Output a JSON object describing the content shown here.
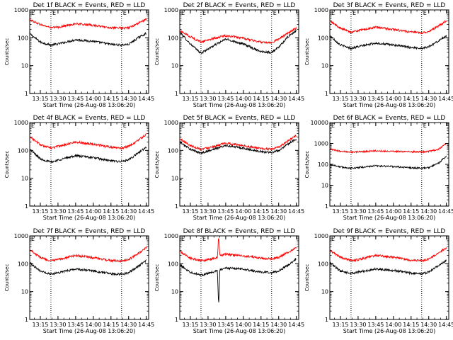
{
  "figure": {
    "x_tick_labels": [
      "13:15",
      "13:30",
      "13:45",
      "14:00",
      "14:15",
      "14:30",
      "14:45"
    ],
    "y_tick_labels": [
      "1",
      "10",
      "100",
      "1000"
    ],
    "y_tick_labels_6f": [
      "1",
      "10",
      "100",
      "1000",
      "10000"
    ],
    "marker_letters": [
      "E",
      "E"
    ],
    "colors": {
      "events": "#000000",
      "lld": "#ff0000",
      "axes": "#000000"
    }
  },
  "chart_data": [
    {
      "type": "line",
      "title": "Det 1f BLACK = Events, RED = LLD",
      "xlabel": "Start Time (26-Aug-08 13:06:20)",
      "ylabel": "Counts/sec",
      "xlim": [
        "13:06",
        "14:47"
      ],
      "ylim": [
        1,
        1000
      ],
      "yscale": "log",
      "x": [
        "13:06",
        "13:15",
        "13:24",
        "13:30",
        "13:45",
        "14:00",
        "14:15",
        "14:24",
        "14:30",
        "14:38",
        "14:45"
      ],
      "series": [
        {
          "name": "Events",
          "values": [
            140,
            70,
            55,
            60,
            85,
            75,
            58,
            55,
            58,
            100,
            145
          ]
        },
        {
          "name": "LLD",
          "values": [
            450,
            300,
            230,
            240,
            320,
            280,
            230,
            220,
            230,
            330,
            460
          ]
        }
      ],
      "markers": [
        {
          "x": "13:24",
          "label": "E"
        },
        {
          "x": "14:24",
          "label": "E"
        }
      ]
    },
    {
      "type": "line",
      "title": "Det 2f BLACK = Events, RED = LLD",
      "xlabel": "Start Time (26-Aug-08 13:06:20)",
      "ylabel": "Counts/sec",
      "xlim": [
        "13:06",
        "14:47"
      ],
      "ylim": [
        1,
        1000
      ],
      "yscale": "log",
      "x": [
        "13:06",
        "13:15",
        "13:24",
        "13:30",
        "13:45",
        "14:00",
        "14:15",
        "14:24",
        "14:30",
        "14:38",
        "14:45"
      ],
      "series": [
        {
          "name": "Events",
          "values": [
            160,
            60,
            28,
            40,
            90,
            60,
            32,
            30,
            45,
            110,
            180
          ]
        },
        {
          "name": "LLD",
          "values": [
            180,
            110,
            70,
            85,
            120,
            95,
            70,
            68,
            90,
            150,
            220
          ]
        }
      ],
      "markers": [
        {
          "x": "13:24",
          "label": "E"
        },
        {
          "x": "14:24",
          "label": "E"
        }
      ]
    },
    {
      "type": "line",
      "title": "Det 3f BLACK = Events, RED = LLD",
      "xlabel": "Start Time (26-Aug-08 13:06:20)",
      "ylabel": "Counts/sec",
      "xlim": [
        "13:06",
        "14:47"
      ],
      "ylim": [
        1,
        1000
      ],
      "yscale": "log",
      "x": [
        "13:06",
        "13:15",
        "13:24",
        "13:30",
        "13:45",
        "14:00",
        "14:15",
        "14:24",
        "14:30",
        "14:38",
        "14:45"
      ],
      "series": [
        {
          "name": "Events",
          "values": [
            120,
            55,
            42,
            48,
            65,
            55,
            45,
            42,
            48,
            75,
            120
          ]
        },
        {
          "name": "LLD",
          "values": [
            400,
            220,
            160,
            180,
            240,
            200,
            160,
            150,
            170,
            260,
            400
          ]
        }
      ],
      "markers": [
        {
          "x": "13:24",
          "label": "E"
        },
        {
          "x": "14:24",
          "label": "E"
        }
      ]
    },
    {
      "type": "line",
      "title": "Det 4f BLACK = Events, RED = LLD",
      "xlabel": "Start Time (26-Aug-08 13:06:20)",
      "ylabel": "Counts/sec",
      "xlim": [
        "13:06",
        "14:47"
      ],
      "ylim": [
        1,
        1000
      ],
      "yscale": "log",
      "x": [
        "13:06",
        "13:15",
        "13:24",
        "13:30",
        "13:45",
        "14:00",
        "14:15",
        "14:24",
        "14:30",
        "14:38",
        "14:45"
      ],
      "series": [
        {
          "name": "Events",
          "values": [
            110,
            50,
            38,
            45,
            65,
            55,
            42,
            40,
            45,
            80,
            130
          ]
        },
        {
          "name": "LLD",
          "values": [
            320,
            160,
            120,
            140,
            200,
            170,
            130,
            120,
            140,
            230,
            380
          ]
        }
      ],
      "markers": [
        {
          "x": "13:24",
          "label": "E"
        },
        {
          "x": "14:24",
          "label": "E"
        }
      ]
    },
    {
      "type": "line",
      "title": "Det 5f BLACK = Events, RED = LLD",
      "xlabel": "Start Time (26-Aug-08 13:06:20)",
      "ylabel": "Counts/sec",
      "xlim": [
        "13:06",
        "14:47"
      ],
      "ylim": [
        1,
        1000
      ],
      "yscale": "log",
      "x": [
        "13:06",
        "13:15",
        "13:24",
        "13:30",
        "13:45",
        "14:00",
        "14:15",
        "14:24",
        "14:30",
        "14:38",
        "14:45"
      ],
      "series": [
        {
          "name": "Events",
          "values": [
            200,
            110,
            80,
            95,
            150,
            120,
            90,
            85,
            100,
            170,
            260
          ]
        },
        {
          "name": "LLD",
          "values": [
            260,
            150,
            110,
            125,
            180,
            150,
            115,
            110,
            130,
            220,
            340
          ]
        }
      ],
      "markers": [
        {
          "x": "13:24",
          "label": "E"
        },
        {
          "x": "14:24",
          "label": "E"
        }
      ]
    },
    {
      "type": "line",
      "title": "Det 6f BLACK = Events, RED = LLD",
      "xlabel": "Start Time (26-Aug-08 13:06:20)",
      "ylabel": "Counts/sec",
      "xlim": [
        "13:06",
        "14:47"
      ],
      "ylim": [
        1,
        10000
      ],
      "yscale": "log",
      "x": [
        "13:06",
        "13:15",
        "13:24",
        "13:30",
        "13:45",
        "14:00",
        "14:15",
        "14:24",
        "14:30",
        "14:38",
        "14:45"
      ],
      "series": [
        {
          "name": "Events",
          "values": [
            100,
            75,
            65,
            70,
            85,
            78,
            68,
            65,
            70,
            110,
            250
          ]
        },
        {
          "name": "LLD",
          "values": [
            520,
            430,
            390,
            400,
            440,
            420,
            400,
            390,
            420,
            520,
            1000
          ]
        }
      ],
      "markers": [
        {
          "x": "13:24",
          "label": "E"
        },
        {
          "x": "14:24",
          "label": "E"
        }
      ]
    },
    {
      "type": "line",
      "title": "Det 7f BLACK = Events, RED = LLD",
      "xlabel": "Start Time (26-Aug-08 13:06:20)",
      "ylabel": "Counts/sec",
      "xlim": [
        "13:06",
        "14:47"
      ],
      "ylim": [
        1,
        1000
      ],
      "yscale": "log",
      "x": [
        "13:06",
        "13:15",
        "13:24",
        "13:30",
        "13:45",
        "14:00",
        "14:15",
        "14:24",
        "14:30",
        "14:38",
        "14:45"
      ],
      "series": [
        {
          "name": "Events",
          "values": [
            110,
            55,
            42,
            48,
            65,
            55,
            44,
            42,
            48,
            80,
            130
          ]
        },
        {
          "name": "LLD",
          "values": [
            330,
            170,
            125,
            140,
            200,
            165,
            130,
            125,
            140,
            230,
            390
          ]
        }
      ],
      "markers": [
        {
          "x": "13:24",
          "label": "E"
        },
        {
          "x": "14:24",
          "label": "E"
        }
      ]
    },
    {
      "type": "line",
      "title": "Det 8f BLACK = Events, RED = LLD",
      "xlabel": "Start Time (26-Aug-08 13:06:20)",
      "ylabel": "Counts/sec",
      "xlim": [
        "13:06",
        "14:47"
      ],
      "ylim": [
        1,
        1000
      ],
      "yscale": "log",
      "x": [
        "13:06",
        "13:15",
        "13:24",
        "13:30",
        "13:38",
        "13:39",
        "13:40",
        "13:45",
        "14:00",
        "14:15",
        "14:24",
        "14:30",
        "14:38",
        "14:45"
      ],
      "series": [
        {
          "name": "Events",
          "values": [
            90,
            50,
            40,
            45,
            55,
            3,
            60,
            70,
            65,
            50,
            48,
            55,
            90,
            150
          ]
        },
        {
          "name": "LLD",
          "values": [
            280,
            160,
            130,
            140,
            170,
            1000,
            200,
            220,
            190,
            160,
            150,
            170,
            260,
            380
          ]
        }
      ],
      "markers": [
        {
          "x": "13:24",
          "label": "E"
        },
        {
          "x": "14:24",
          "label": "E"
        }
      ]
    },
    {
      "type": "line",
      "title": "Det 9f BLACK = Events, RED = LLD",
      "xlabel": "Start Time (26-Aug-08 13:06:20)",
      "ylabel": "Counts/sec",
      "xlim": [
        "13:06",
        "14:47"
      ],
      "ylim": [
        1,
        1000
      ],
      "yscale": "log",
      "x": [
        "13:06",
        "13:15",
        "13:24",
        "13:30",
        "13:45",
        "14:00",
        "14:15",
        "14:24",
        "14:30",
        "14:38",
        "14:45"
      ],
      "series": [
        {
          "name": "Events",
          "values": [
            110,
            55,
            45,
            50,
            65,
            58,
            46,
            44,
            50,
            85,
            130
          ]
        },
        {
          "name": "LLD",
          "values": [
            300,
            170,
            130,
            140,
            200,
            170,
            135,
            130,
            145,
            240,
            380
          ]
        }
      ],
      "markers": [
        {
          "x": "13:24",
          "label": "E"
        },
        {
          "x": "14:24",
          "label": "E"
        }
      ]
    }
  ]
}
